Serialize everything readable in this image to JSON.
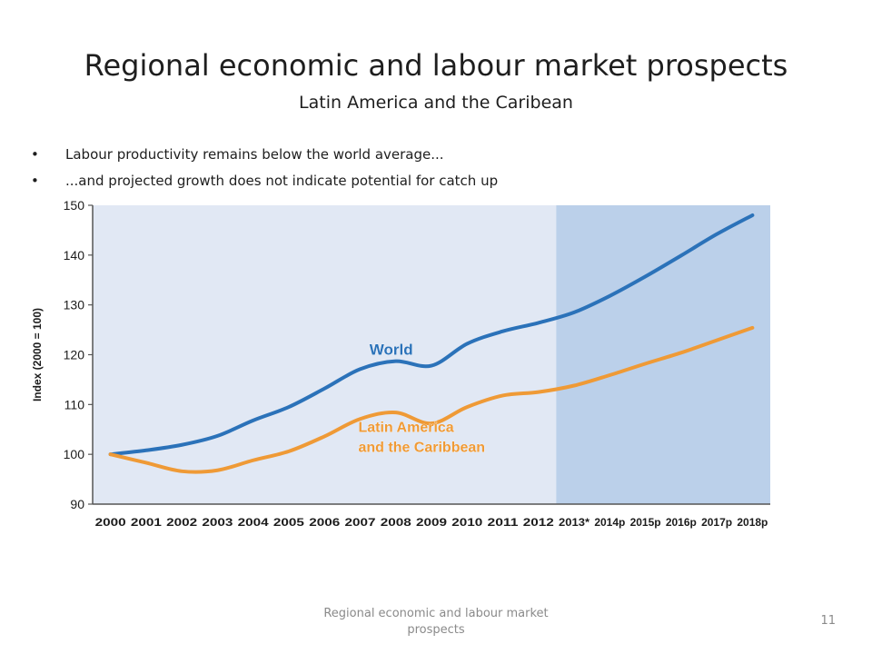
{
  "slide": {
    "title": "Regional economic and labour market prospects",
    "subtitle": "Latin America and the Caribean",
    "bullets": [
      "Labour productivity remains below the world average...",
      "...and projected growth does not indicate potential for catch up"
    ],
    "bullet_glyph": "•",
    "footer": "Regional economic and labour market prospects",
    "page_number": "11"
  },
  "chart_data": {
    "type": "line",
    "title": "",
    "xlabel": "",
    "ylabel": "Index (2000 = 100)",
    "categories": [
      "2000",
      "2001",
      "2002",
      "2003",
      "2004",
      "2005",
      "2006",
      "2007",
      "2008",
      "2009",
      "2010",
      "2011",
      "2012",
      "2013*",
      "2014p",
      "2015p",
      "2016p",
      "2017p",
      "2018p"
    ],
    "ylim": [
      90,
      150
    ],
    "yticks": [
      90,
      100,
      110,
      120,
      130,
      140,
      150
    ],
    "projection_start_category": "2013*",
    "series": [
      {
        "name": "World",
        "color": "#2b72b9",
        "values": [
          100,
          100.8,
          101.9,
          103.7,
          106.8,
          109.5,
          113.2,
          117.1,
          118.7,
          117.8,
          122.2,
          124.7,
          126.4,
          128.5,
          131.8,
          135.7,
          139.9,
          144.2,
          148.0
        ]
      },
      {
        "name": "Latin America and the Caribbean",
        "label_lines": [
          "Latin America",
          "and the Caribbean"
        ],
        "color": "#ef9a36",
        "values": [
          100,
          98.3,
          96.6,
          96.8,
          98.8,
          100.6,
          103.6,
          107.1,
          108.4,
          106.2,
          109.5,
          111.8,
          112.5,
          113.8,
          115.9,
          118.2,
          120.4,
          122.9,
          125.4
        ]
      }
    ],
    "colors": {
      "plot_background": "#e1e8f4",
      "projection_background": "#bbd0ea",
      "axis_text": "#1c1c1c"
    }
  }
}
